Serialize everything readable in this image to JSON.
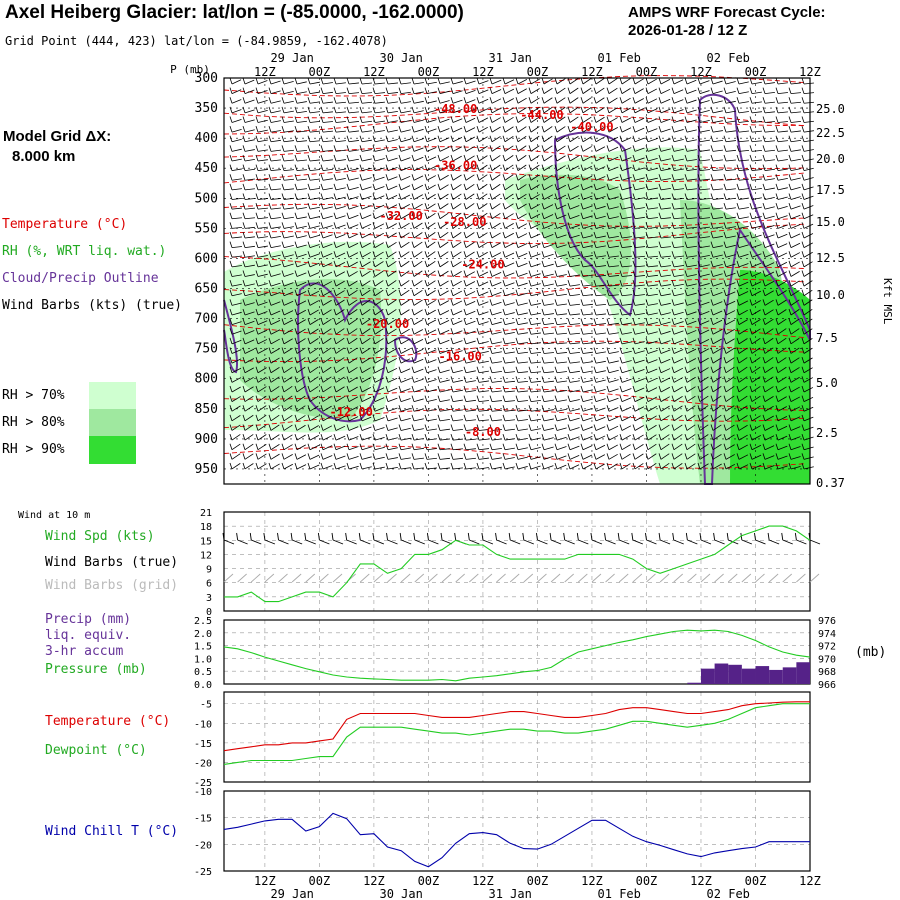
{
  "header": {
    "title": "Axel Heiberg Glacier:  lat/lon = (-85.0000, -162.0000)",
    "subtitle": "Grid Point (444, 423) lat/lon = (-84.9859, -162.4078)",
    "cycle_line1": "AMPS WRF Forecast Cycle:",
    "cycle_line2": "2026-01-28 / 12  Z"
  },
  "left_panel": {
    "model_grid_line1": "Model Grid ΔX:",
    "model_grid_line2": "8.000 km",
    "legend_temperature": "Temperature (°C)",
    "legend_rh": "RH (%, WRT liq. wat.)",
    "legend_cloud": "Cloud/Precip Outline",
    "legend_wind": "Wind Barbs (kts) (true)",
    "rh_levels": [
      "RH > 70%",
      "RH > 80%",
      "RH > 90%"
    ],
    "wind_at_10m": "Wind at 10 m",
    "wind_spd": "Wind Spd (kts)",
    "wind_barbs_true": "Wind Barbs (true)",
    "wind_barbs_grid": "Wind Barbs (grid)",
    "precip_line1": "Precip (mm)",
    "precip_line2": "liq. equiv.",
    "precip_line3": "3-hr accum",
    "pressure_label": "Pressure (mb)",
    "pressure_unit": "(mb)",
    "temperature_label": "Temperature (°C)",
    "dewpoint_label": "Dewpoint (°C)",
    "wind_chill_label": "Wind Chill T (°C)"
  },
  "colors": {
    "temperature": "#dd0000",
    "rh70": "#cfffd0",
    "rh80": "#9fe89f",
    "rh90": "#33dd33",
    "cloud": "#663399",
    "wind_spd": "#22cc22",
    "precip": "#552288",
    "wind_chill": "#0000aa",
    "grid_barb": "#aaaaaa"
  },
  "chart_data": [
    {
      "type": "heatmap",
      "name": "vertical cross-section",
      "y_axis_label": "P (mb)",
      "pressure_ticks": [
        300,
        350,
        400,
        450,
        500,
        550,
        600,
        650,
        700,
        750,
        800,
        850,
        900,
        950
      ],
      "ylim": [
        300,
        975
      ],
      "right_ticks": [
        "25.0",
        "22.5",
        "20.0",
        "17.5",
        "15.0",
        "12.5",
        "10.0",
        "7.5",
        "5.0",
        "2.5",
        "0.37"
      ],
      "right_axis_label": "Kft MSL",
      "top_dates": [
        "29 Jan",
        "30 Jan",
        "31 Jan",
        "01 Feb",
        "02 Feb"
      ],
      "time_ticks": [
        "12Z",
        "00Z",
        "12Z",
        "00Z",
        "12Z",
        "00Z",
        "12Z",
        "00Z",
        "12Z",
        "00Z",
        "12Z"
      ],
      "time_hours": [
        0,
        12,
        24,
        36,
        48,
        60,
        72,
        84,
        96,
        108,
        120
      ],
      "xlim": [
        -9,
        120
      ],
      "temperature_labels": [
        {
          "label": "-48.00",
          "hour": 42,
          "p": 358
        },
        {
          "label": "-44.00",
          "hour": 61,
          "p": 368
        },
        {
          "label": "-40.00",
          "hour": 72,
          "p": 388
        },
        {
          "label": "-36.00",
          "hour": 42,
          "p": 452
        },
        {
          "label": "-32.00",
          "hour": 30,
          "p": 536
        },
        {
          "label": "-28.00",
          "hour": 44,
          "p": 546
        },
        {
          "label": "-24.00",
          "hour": 48,
          "p": 617
        },
        {
          "label": "-20.00",
          "hour": 27,
          "p": 716
        },
        {
          "label": "-16.00",
          "hour": 43,
          "p": 770
        },
        {
          "label": "-12.00",
          "hour": 19,
          "p": 862
        },
        {
          "label": "-8.00",
          "hour": 48,
          "p": 895
        }
      ]
    },
    {
      "type": "line",
      "name": "wind speed 10 m",
      "y_unit": "kts",
      "yticks": [
        0,
        3,
        6,
        9,
        12,
        15,
        18,
        21
      ],
      "ylim": [
        0,
        21
      ],
      "hours": [
        -9,
        -6,
        -3,
        0,
        3,
        6,
        9,
        12,
        15,
        18,
        21,
        24,
        27,
        30,
        33,
        36,
        39,
        42,
        45,
        48,
        51,
        54,
        57,
        60,
        63,
        66,
        69,
        72,
        75,
        78,
        81,
        84,
        87,
        90,
        93,
        96,
        99,
        102,
        105,
        108,
        111,
        114,
        117,
        120
      ],
      "values": [
        3,
        3,
        4,
        2,
        2,
        3,
        4,
        4,
        3,
        6,
        10,
        10,
        8,
        9,
        12,
        12,
        13,
        15,
        14,
        14,
        12,
        11,
        11,
        11,
        11,
        11,
        12,
        12,
        12,
        12,
        11,
        9,
        8,
        9,
        10,
        11,
        12,
        14,
        16,
        17,
        18,
        18,
        17,
        15
      ]
    },
    {
      "type": "bar",
      "name": "precip 3-hr accum",
      "y_unit": "mm",
      "yticks": [
        0.0,
        0.5,
        1.0,
        1.5,
        2.0,
        2.5
      ],
      "ylim": [
        0,
        2.5
      ],
      "hours": [
        96,
        99,
        102,
        105,
        108,
        111,
        114,
        117,
        120
      ],
      "values": [
        0.05,
        0.6,
        0.8,
        0.75,
        0.6,
        0.7,
        0.55,
        0.65,
        0.85
      ]
    },
    {
      "type": "line",
      "name": "surface pressure",
      "y_unit": "mb",
      "yticks": [
        966,
        968,
        970,
        972,
        974,
        976
      ],
      "ylim": [
        966,
        976
      ],
      "hours": [
        -9,
        -6,
        -3,
        0,
        3,
        6,
        9,
        12,
        15,
        18,
        21,
        24,
        27,
        30,
        33,
        36,
        39,
        42,
        45,
        48,
        51,
        54,
        57,
        60,
        63,
        66,
        69,
        72,
        75,
        78,
        81,
        84,
        87,
        90,
        93,
        96,
        99,
        102,
        105,
        108,
        111,
        114,
        117,
        120
      ],
      "values": [
        971.8,
        971.5,
        970.9,
        970.2,
        969.6,
        969.0,
        968.4,
        967.9,
        967.4,
        967.1,
        966.9,
        966.8,
        966.7,
        966.6,
        966.6,
        966.6,
        966.7,
        966.5,
        966.9,
        967.1,
        967.3,
        967.6,
        967.9,
        968.1,
        968.6,
        969.9,
        971.0,
        971.5,
        972.0,
        972.5,
        972.9,
        973.4,
        973.8,
        974.2,
        974.4,
        974.3,
        974.4,
        974.2,
        973.6,
        972.8,
        971.8,
        971.0,
        970.5,
        970.2
      ]
    },
    {
      "type": "line",
      "name": "temperature and dewpoint",
      "y_unit": "°C",
      "yticks": [
        -25,
        -20,
        -15,
        -10,
        -5
      ],
      "ylim": [
        -25,
        -2
      ],
      "hours": [
        -9,
        -6,
        -3,
        0,
        3,
        6,
        9,
        12,
        15,
        18,
        21,
        24,
        27,
        30,
        33,
        36,
        39,
        42,
        45,
        48,
        51,
        54,
        57,
        60,
        63,
        66,
        69,
        72,
        75,
        78,
        81,
        84,
        87,
        90,
        93,
        96,
        99,
        102,
        105,
        108,
        111,
        114,
        117,
        120
      ],
      "series": [
        {
          "name": "Temperature",
          "values": [
            -17,
            -16.5,
            -16,
            -15.5,
            -15.5,
            -15,
            -15,
            -14.5,
            -14,
            -9,
            -7.5,
            -7.5,
            -7.5,
            -7.5,
            -7.5,
            -8,
            -8.5,
            -8.5,
            -8.5,
            -8,
            -7.5,
            -7,
            -7,
            -7.5,
            -8,
            -8.5,
            -8.5,
            -8,
            -7.5,
            -6.5,
            -6,
            -6,
            -6.5,
            -7,
            -7.5,
            -7.5,
            -7,
            -6.5,
            -5.5,
            -5,
            -4.8,
            -4.6,
            -4.5,
            -4.5
          ]
        },
        {
          "name": "Dewpoint",
          "values": [
            -20.5,
            -20,
            -19.5,
            -19.5,
            -19.5,
            -19.5,
            -19,
            -18.5,
            -18.5,
            -13.5,
            -11,
            -11,
            -11,
            -11,
            -11.5,
            -12,
            -12.5,
            -12.5,
            -13,
            -12.5,
            -12,
            -11.5,
            -11.5,
            -12,
            -12,
            -12.5,
            -12.5,
            -12,
            -11.5,
            -10.5,
            -9.5,
            -9.5,
            -10,
            -10.5,
            -11,
            -10.5,
            -10,
            -9,
            -7.5,
            -6,
            -5.5,
            -5,
            -5,
            -5
          ]
        }
      ]
    },
    {
      "type": "line",
      "name": "wind chill",
      "y_unit": "°C",
      "yticks": [
        -25,
        -20,
        -15,
        -10
      ],
      "ylim": [
        -25,
        -10
      ],
      "hours": [
        -9,
        -6,
        -3,
        0,
        3,
        6,
        9,
        12,
        15,
        18,
        21,
        24,
        27,
        30,
        33,
        36,
        39,
        42,
        45,
        48,
        51,
        54,
        57,
        60,
        63,
        66,
        69,
        72,
        75,
        78,
        81,
        84,
        87,
        90,
        93,
        96,
        99,
        102,
        105,
        108,
        111,
        114,
        117,
        120
      ],
      "values": [
        -17.2,
        -16.8,
        -16.2,
        -15.6,
        -15.3,
        -15.3,
        -17.5,
        -16.7,
        -14.2,
        -15.2,
        -18.2,
        -18,
        -20.5,
        -21.2,
        -23.2,
        -24.2,
        -22.5,
        -19.8,
        -18,
        -17.8,
        -18.2,
        -19.8,
        -20.8,
        -20.9,
        -20,
        -18.5,
        -17,
        -15.5,
        -15.5,
        -17,
        -18.5,
        -19.5,
        -20.2,
        -21,
        -21.8,
        -22.3,
        -21.6,
        -21.2,
        -20.8,
        -20.5,
        -19.5,
        -19.5,
        -19.5,
        -19.5
      ]
    }
  ]
}
